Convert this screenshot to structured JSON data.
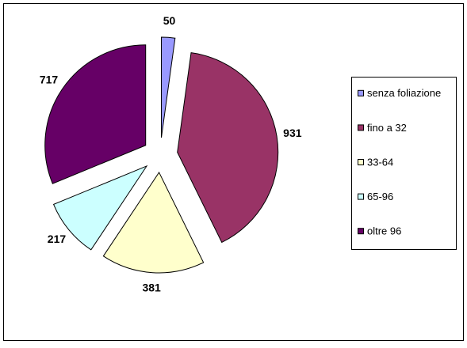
{
  "chart_data": {
    "type": "pie",
    "categories": [
      "senza foliazione",
      "fino a 32",
      "33-64",
      "65-96",
      "oltre 96"
    ],
    "values": [
      50,
      931,
      381,
      217,
      717
    ],
    "colors": [
      "#9999ff",
      "#993366",
      "#ffffcc",
      "#ccffff",
      "#660066"
    ],
    "legend": "right"
  }
}
